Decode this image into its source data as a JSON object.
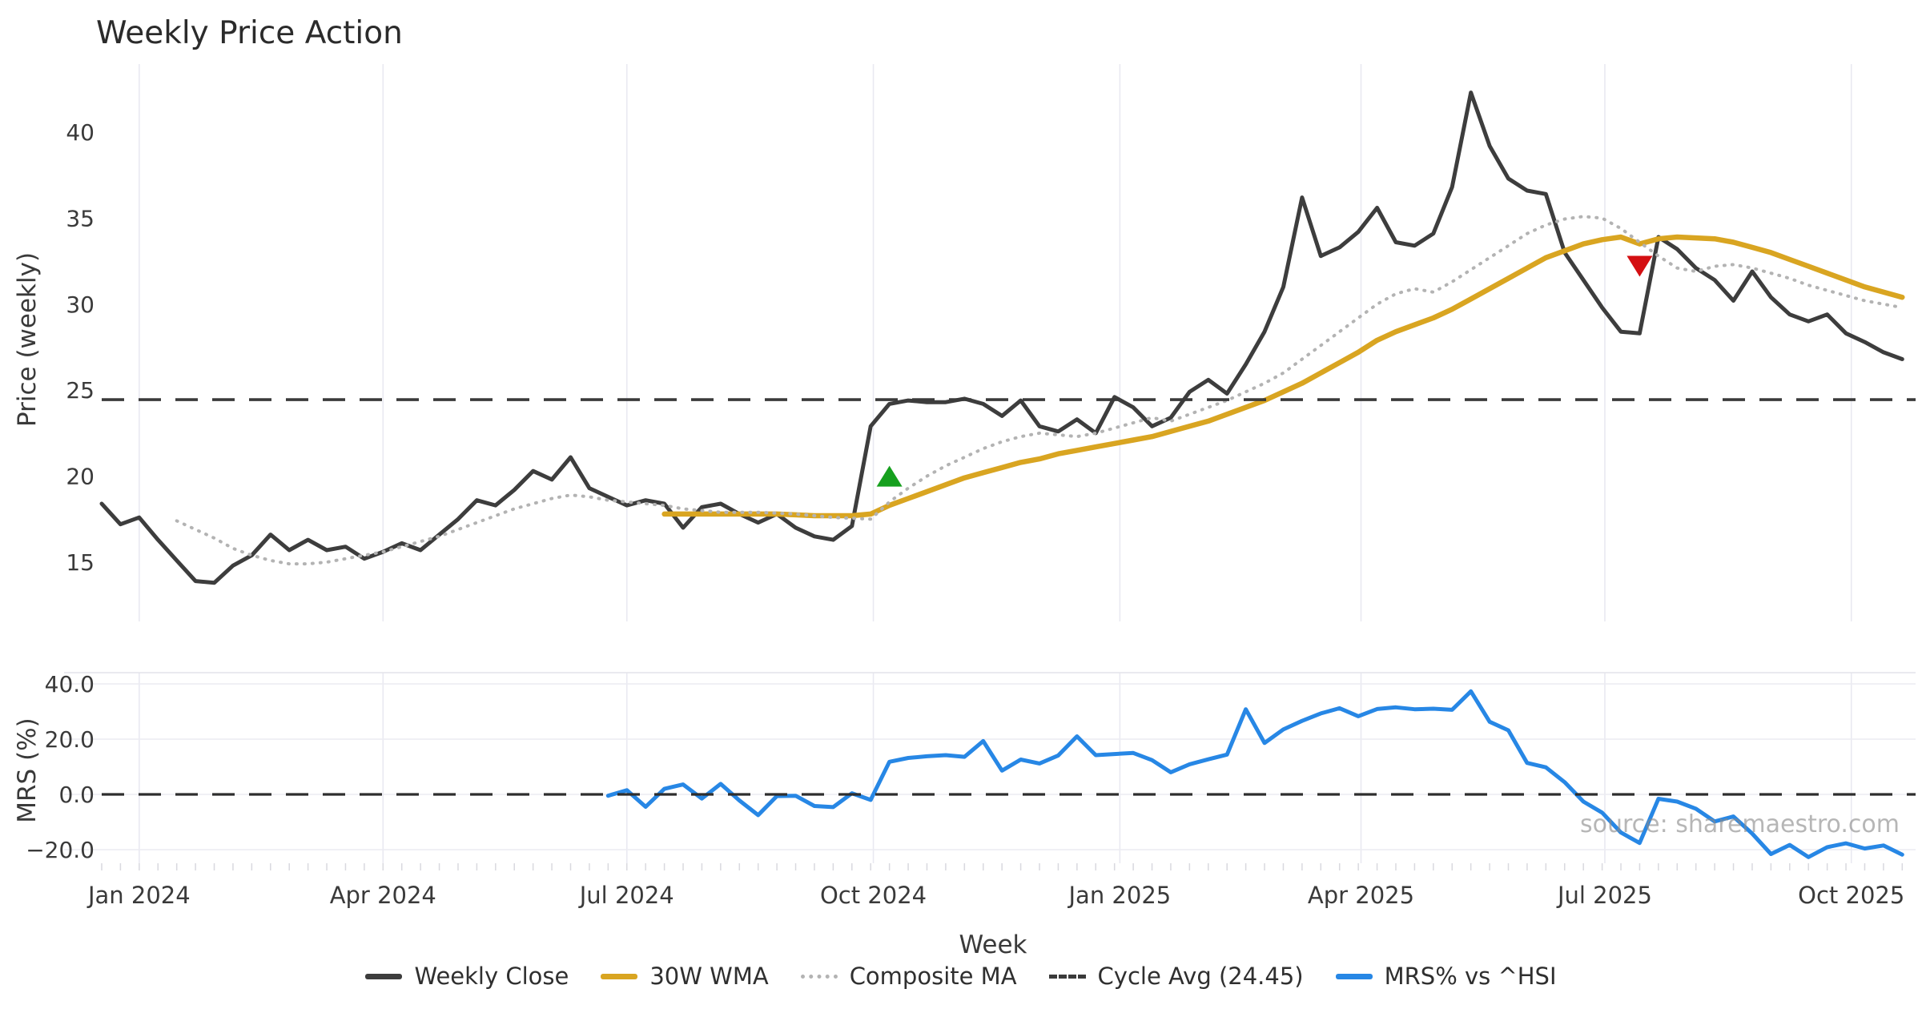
{
  "page": {
    "title": "Weekly Price Action",
    "watermark": "source: sharemaestro.com",
    "xlabel": "Week"
  },
  "colors": {
    "weekly_close": "#3d3d3d",
    "wma_30w": "#d9a521",
    "composite_ma": "#b3b3b3",
    "cycle_avg": "#3a3a3a",
    "mrs": "#2787e5",
    "buy_marker": "#16a01e",
    "sell_marker": "#d40f12",
    "grid": "#e9e9f1",
    "text": "#3a3a3a"
  },
  "legend": {
    "items": [
      {
        "label": "Weekly Close",
        "style": "solid",
        "color": "#3d3d3d"
      },
      {
        "label": "30W WMA",
        "style": "solid",
        "color": "#d9a521"
      },
      {
        "label": "Composite MA",
        "style": "dotted",
        "color": "#b3b3b3"
      },
      {
        "label": "Cycle Avg (24.45)",
        "style": "dashed",
        "color": "#3a3a3a"
      },
      {
        "label": "MRS% vs ^HSI",
        "style": "solid",
        "color": "#2787e5"
      }
    ]
  },
  "xticks": [
    {
      "label": "Jan 2024",
      "date": "2024-01-01"
    },
    {
      "label": "Apr 2024",
      "date": "2024-04-01"
    },
    {
      "label": "Jul 2024",
      "date": "2024-07-01"
    },
    {
      "label": "Oct 2024",
      "date": "2024-10-01"
    },
    {
      "label": "Jan 2025",
      "date": "2025-01-01"
    },
    {
      "label": "Apr 2025",
      "date": "2025-04-01"
    },
    {
      "label": "Jul 2025",
      "date": "2025-07-01"
    },
    {
      "label": "Oct 2025",
      "date": "2025-10-01"
    }
  ],
  "chart_data": [
    {
      "type": "line",
      "panel": "price",
      "title": "Weekly Price Action",
      "xlabel": "Week",
      "ylabel": "Price (weekly)",
      "x_start": "2023-12-18",
      "x_freq_days": 7,
      "n_points": 97,
      "ylim": [
        11.7,
        44.0
      ],
      "grid": "vertical-quarterly",
      "yticks": [
        {
          "label": "40",
          "v": 40
        },
        {
          "label": "35",
          "v": 35
        },
        {
          "label": "30",
          "v": 30
        },
        {
          "label": "25",
          "v": 25
        },
        {
          "label": "20",
          "v": 20
        },
        {
          "label": "15",
          "v": 15
        }
      ],
      "series": [
        {
          "name": "Weekly Close",
          "color": "#3d3d3d",
          "style": "solid",
          "width": 5,
          "values": [
            18.4,
            17.2,
            17.6,
            16.3,
            15.1,
            13.9,
            13.8,
            14.8,
            15.4,
            16.6,
            15.7,
            16.3,
            15.7,
            15.9,
            15.2,
            15.6,
            16.1,
            15.7,
            16.6,
            17.5,
            18.6,
            18.3,
            19.2,
            20.3,
            19.8,
            21.1,
            19.3,
            18.8,
            18.3,
            18.6,
            18.4,
            17.0,
            18.2,
            18.4,
            17.8,
            17.3,
            17.8,
            17.0,
            16.5,
            16.3,
            17.1,
            22.9,
            24.2,
            24.4,
            24.3,
            24.3,
            24.5,
            24.2,
            23.5,
            24.4,
            22.9,
            22.6,
            23.3,
            22.5,
            24.6,
            24.0,
            22.9,
            23.4,
            24.9,
            25.6,
            24.8,
            26.5,
            28.4,
            31.0,
            36.2,
            32.8,
            33.3,
            34.2,
            35.6,
            33.6,
            33.4,
            34.1,
            36.8,
            42.3,
            39.2,
            37.3,
            36.6,
            36.4,
            33.0,
            31.4,
            29.8,
            28.4,
            28.3,
            33.9,
            33.2,
            32.1,
            31.4,
            30.2,
            31.9,
            30.4,
            29.4,
            29.0,
            29.4,
            28.3,
            27.8,
            27.2,
            26.8
          ]
        },
        {
          "name": "30W WMA",
          "color": "#d9a521",
          "style": "solid",
          "width": 6.5,
          "values": [
            null,
            null,
            null,
            null,
            null,
            null,
            null,
            null,
            null,
            null,
            null,
            null,
            null,
            null,
            null,
            null,
            null,
            null,
            null,
            null,
            null,
            null,
            null,
            null,
            null,
            null,
            null,
            null,
            null,
            null,
            17.8,
            17.8,
            17.8,
            17.8,
            17.8,
            17.8,
            17.8,
            17.75,
            17.7,
            17.7,
            17.7,
            17.8,
            18.3,
            18.7,
            19.1,
            19.5,
            19.9,
            20.2,
            20.5,
            20.8,
            21.0,
            21.3,
            21.5,
            21.7,
            21.9,
            22.1,
            22.3,
            22.6,
            22.9,
            23.2,
            23.6,
            24.0,
            24.4,
            24.9,
            25.4,
            26.0,
            26.6,
            27.2,
            27.9,
            28.4,
            28.8,
            29.2,
            29.7,
            30.3,
            30.9,
            31.5,
            32.1,
            32.7,
            33.1,
            33.5,
            33.75,
            33.9,
            33.5,
            33.8,
            33.9,
            33.85,
            33.8,
            33.6,
            33.3,
            33.0,
            32.6,
            32.2,
            31.8,
            31.4,
            31.0,
            30.7,
            30.4
          ]
        },
        {
          "name": "Composite MA",
          "color": "#b3b3b3",
          "style": "dotted",
          "width": 4,
          "values": [
            null,
            null,
            null,
            null,
            17.4,
            16.9,
            16.4,
            15.8,
            15.4,
            15.1,
            14.9,
            14.9,
            15.0,
            15.2,
            15.4,
            15.6,
            15.9,
            16.2,
            16.5,
            16.9,
            17.3,
            17.7,
            18.1,
            18.4,
            18.7,
            18.9,
            18.8,
            18.6,
            18.5,
            18.4,
            18.3,
            18.1,
            18.0,
            17.9,
            17.9,
            17.9,
            17.85,
            17.8,
            17.7,
            17.6,
            17.55,
            17.5,
            18.5,
            19.3,
            20.0,
            20.6,
            21.1,
            21.6,
            22.0,
            22.3,
            22.5,
            22.4,
            22.3,
            22.5,
            22.8,
            23.1,
            23.4,
            23.2,
            23.6,
            24.0,
            24.4,
            24.9,
            25.4,
            26.0,
            26.8,
            27.6,
            28.4,
            29.2,
            30.0,
            30.6,
            30.9,
            30.7,
            31.3,
            32.0,
            32.7,
            33.4,
            34.1,
            34.6,
            34.95,
            35.1,
            35.0,
            34.4,
            33.6,
            32.8,
            32.1,
            31.9,
            32.2,
            32.3,
            32.1,
            31.8,
            31.5,
            31.1,
            30.8,
            30.5,
            30.2,
            30.0,
            29.8
          ]
        },
        {
          "name": "Cycle Avg (24.45)",
          "color": "#3a3a3a",
          "style": "dashed",
          "width": 3.6,
          "constant": 24.45
        }
      ],
      "markers": [
        {
          "shape": "triangle-up",
          "signal": "buy",
          "date": "2024-10-07",
          "value": 20.0,
          "color": "#16a01e"
        },
        {
          "shape": "triangle-down",
          "signal": "sell",
          "date": "2025-07-14",
          "value": 32.2,
          "color": "#d40f12"
        }
      ]
    },
    {
      "type": "line",
      "panel": "mrs",
      "ylabel": "MRS (%)",
      "x_start": "2023-12-18",
      "x_freq_days": 7,
      "n_points": 97,
      "ylim": [
        -24.5,
        41.8
      ],
      "grid": "both",
      "yticks": [
        {
          "label": "40.0",
          "v": 40
        },
        {
          "label": "20.0",
          "v": 20
        },
        {
          "label": "0.0",
          "v": 0
        },
        {
          "label": "−20.0",
          "v": -20
        }
      ],
      "series": [
        {
          "name": "MRS% vs ^HSI",
          "color": "#2787e5",
          "style": "solid",
          "width": 5,
          "values": [
            null,
            null,
            null,
            null,
            null,
            null,
            null,
            null,
            null,
            null,
            null,
            null,
            null,
            null,
            null,
            null,
            null,
            null,
            null,
            null,
            null,
            null,
            null,
            null,
            null,
            null,
            null,
            -0.5,
            1.5,
            -4.5,
            2.0,
            3.6,
            -1.5,
            3.8,
            -2.2,
            -7.5,
            -0.6,
            -0.5,
            -4.2,
            -4.6,
            0.4,
            -2.0,
            11.8,
            13.2,
            13.8,
            14.2,
            13.6,
            19.3,
            8.6,
            12.6,
            11.2,
            14.1,
            21.0,
            14.2,
            14.6,
            15.0,
            12.4,
            8.0,
            10.9,
            12.7,
            14.4,
            30.8,
            18.6,
            23.5,
            26.6,
            29.3,
            31.2,
            28.3,
            30.9,
            31.5,
            30.8,
            31.0,
            30.6,
            37.3,
            26.3,
            23.2,
            11.4,
            9.8,
            4.4,
            -2.6,
            -6.6,
            -13.8,
            -17.6,
            -1.6,
            -2.6,
            -5.2,
            -9.8,
            -8.0,
            -14.2,
            -21.6,
            -18.3,
            -22.7,
            -19.1,
            -17.7,
            -19.6,
            -18.5,
            -21.8
          ]
        },
        {
          "name": "Zero line",
          "color": "#2e2e2e",
          "style": "dashed",
          "width": 3.2,
          "constant": 0
        }
      ]
    }
  ]
}
